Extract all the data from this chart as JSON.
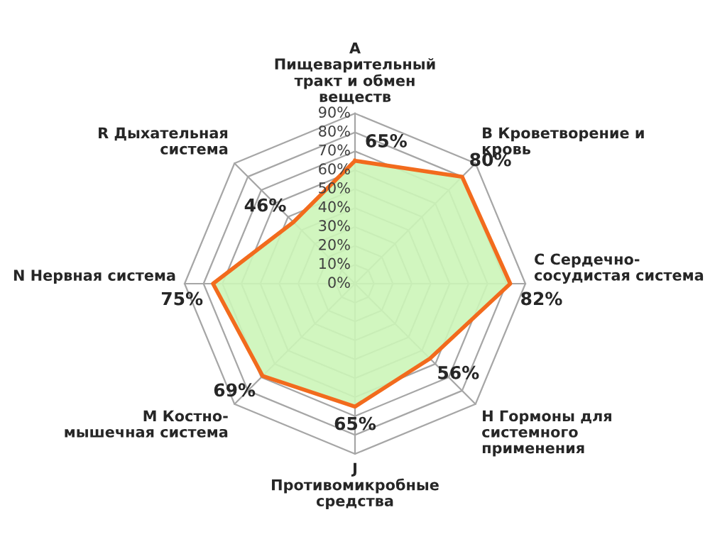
{
  "chart_data": {
    "type": "radar",
    "categories": [
      "A\nПищеварительный\nтракт и обмен\nвеществ",
      "B Кроветворение и\nкровь",
      "C Сердечно-\nсосудистая система",
      "H Гормоны для\nсистемного\nприменения",
      "J\nПротивомикробные\nсредства",
      "M Костно-\nмышечная система",
      "N Нервная система",
      "R Дыхательная\nсистема"
    ],
    "series": [
      {
        "color": "#f26b1d",
        "values": [
          65,
          80,
          82,
          56,
          65,
          69,
          75,
          46
        ],
        "value_labels": [
          "65%",
          "80%",
          "82%",
          "56%",
          "65%",
          "69%",
          "75%",
          "46%"
        ]
      }
    ],
    "ylim": [
      0,
      90
    ],
    "yticks": [
      {
        "value": 0,
        "label": "0%"
      },
      {
        "value": 10,
        "label": "10%"
      },
      {
        "value": 20,
        "label": "20%"
      },
      {
        "value": 30,
        "label": "30%"
      },
      {
        "value": 40,
        "label": "40%"
      },
      {
        "value": 50,
        "label": "50%"
      },
      {
        "value": 60,
        "label": "60%"
      },
      {
        "value": 70,
        "label": "70%"
      },
      {
        "value": 80,
        "label": "80%"
      },
      {
        "value": 90,
        "label": "90%"
      }
    ],
    "grid": true
  }
}
